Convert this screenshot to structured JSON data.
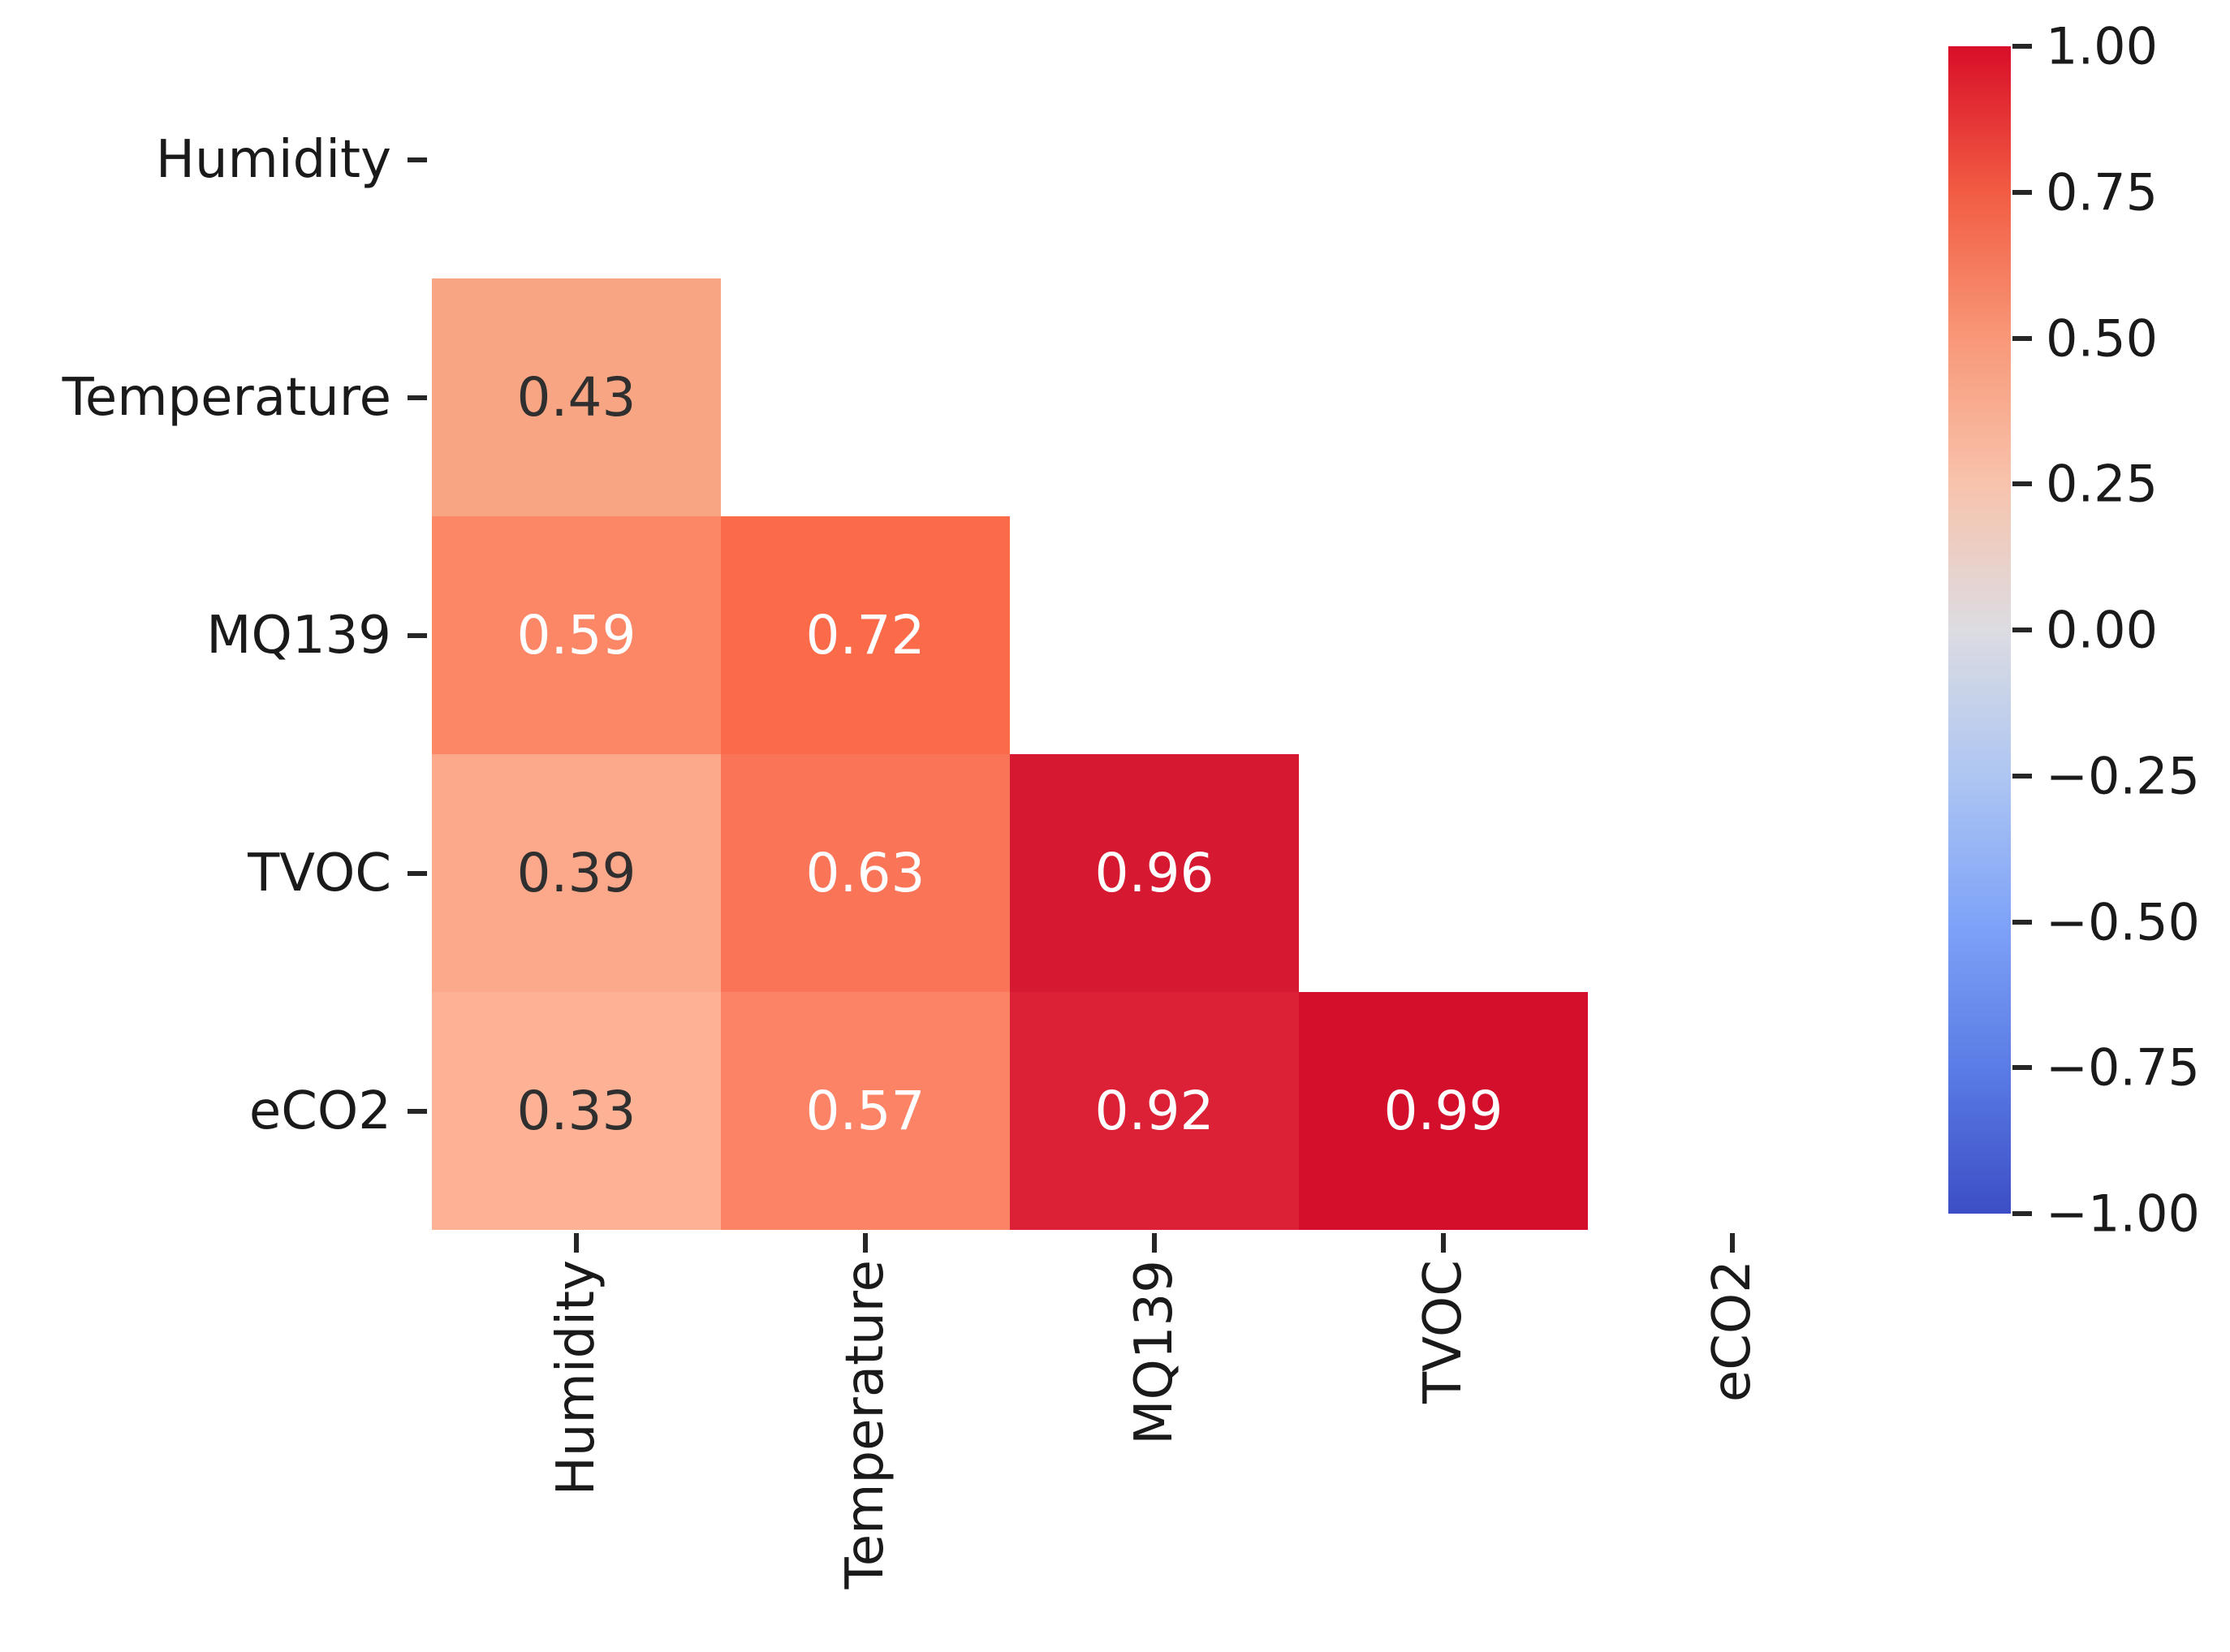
{
  "figure": {
    "background_color": "#ffffff",
    "axis_text_color": "#1a1a1a",
    "tick_color": "#262626"
  },
  "chart_data": {
    "type": "heatmap",
    "title": "",
    "xlabel": "",
    "ylabel": "",
    "description": "Correlation matrix heatmap, lower triangle shown (diagonal and upper triangle masked white)",
    "variables": [
      "Humidity",
      "Temperature",
      "MQ139",
      "TVOC",
      "eCO2"
    ],
    "x_tick_labels": [
      "Humidity",
      "Temperature",
      "MQ139",
      "TVOC",
      "eCO2"
    ],
    "y_tick_labels": [
      "Humidity",
      "Temperature",
      "MQ139",
      "TVOC",
      "eCO2"
    ],
    "matrix": [
      [
        null,
        null,
        null,
        null,
        null
      ],
      [
        0.43,
        null,
        null,
        null,
        null
      ],
      [
        0.59,
        0.72,
        null,
        null,
        null
      ],
      [
        0.39,
        0.63,
        0.96,
        null,
        null
      ],
      [
        0.33,
        0.57,
        0.92,
        0.99,
        null
      ]
    ],
    "value_labels": [
      [
        null,
        null,
        null,
        null,
        null
      ],
      [
        "0.43",
        null,
        null,
        null,
        null
      ],
      [
        "0.59",
        "0.72",
        null,
        null,
        null
      ],
      [
        "0.39",
        "0.63",
        "0.96",
        null,
        null
      ],
      [
        "0.33",
        "0.57",
        "0.92",
        "0.99",
        null
      ]
    ],
    "cell_colors": [
      [
        null,
        null,
        null,
        null,
        null
      ],
      [
        "#F8A584",
        null,
        null,
        null,
        null
      ],
      [
        "#FC8766",
        "#FB6A49",
        null,
        null,
        null
      ],
      [
        "#FCA98B",
        "#FA7558",
        "#D61931",
        null,
        null
      ],
      [
        "#FDB295",
        "#FC8366",
        "#DC2137",
        "#D40F2C",
        null
      ]
    ],
    "text_colors": [
      [
        null,
        null,
        null,
        null,
        null
      ],
      [
        "#2f2f2f",
        null,
        null,
        null,
        null
      ],
      [
        "#ffffff",
        "#ffffff",
        null,
        null,
        null
      ],
      [
        "#2f2f2f",
        "#ffffff",
        "#ffffff",
        null,
        null
      ],
      [
        "#2f2f2f",
        "#ffffff",
        "#ffffff",
        "#ffffff",
        null
      ]
    ],
    "colorbar": {
      "vmin": -1.0,
      "vmax": 1.0,
      "colormap": "coolwarm",
      "tick_labels": [
        "1.00",
        "0.75",
        "0.50",
        "0.25",
        "0.00",
        "−0.25",
        "−0.50",
        "−0.75",
        "−1.00"
      ],
      "gradient_stops": [
        {
          "pos": 0.0,
          "color": "#D80E28"
        },
        {
          "pos": 0.125,
          "color": "#F25C43"
        },
        {
          "pos": 0.25,
          "color": "#F89878"
        },
        {
          "pos": 0.375,
          "color": "#F8C3AC"
        },
        {
          "pos": 0.5,
          "color": "#DCDCE2"
        },
        {
          "pos": 0.625,
          "color": "#AEC6F2"
        },
        {
          "pos": 0.75,
          "color": "#7FA3F8"
        },
        {
          "pos": 0.875,
          "color": "#5A7CE5"
        },
        {
          "pos": 1.0,
          "color": "#3C4EC5"
        }
      ]
    }
  }
}
